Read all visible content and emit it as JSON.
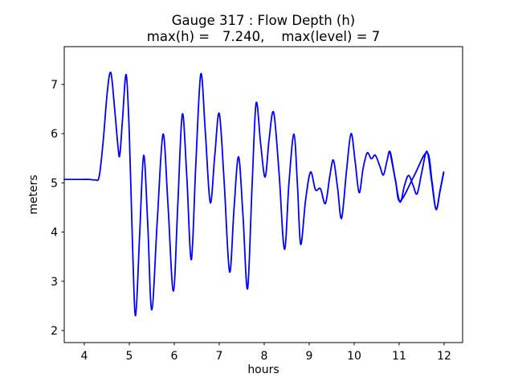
{
  "figure": {
    "background": "#ffffff",
    "title_line1": "Gauge 317 : Flow Depth (h)",
    "title_line2": "max(h) =   7.240,    max(level) = 7"
  },
  "chart_data": {
    "type": "line",
    "title": "Gauge 317 : Flow Depth (h)",
    "subtitle": "max(h) =   7.240,    max(level) = 7",
    "xlabel": "hours",
    "ylabel": "meters",
    "x_ticks": [
      4,
      5,
      6,
      7,
      8,
      9,
      10,
      11,
      12
    ],
    "y_ticks": [
      2,
      3,
      4,
      5,
      6,
      7
    ],
    "xlim": [
      3.55,
      12.41
    ],
    "ylim": [
      1.75,
      7.77
    ],
    "grid": false,
    "legend": "none",
    "line_color": "#0000ff",
    "axis_color": "#000000",
    "line_width": 1.8,
    "max_h_shown": "7.240",
    "max_level_shown": "7",
    "series": [
      {
        "name": "h",
        "points": [
          [
            3.55,
            5.07
          ],
          [
            3.75,
            5.07
          ],
          [
            3.95,
            5.07
          ],
          [
            4.12,
            5.07
          ],
          [
            4.24,
            5.06
          ],
          [
            4.33,
            5.13
          ],
          [
            4.42,
            5.85
          ],
          [
            4.51,
            6.85
          ],
          [
            4.59,
            7.24
          ],
          [
            4.67,
            6.55
          ],
          [
            4.75,
            5.72
          ],
          [
            4.79,
            5.57
          ],
          [
            4.85,
            6.3
          ],
          [
            4.93,
            7.2
          ],
          [
            5.0,
            6.0
          ],
          [
            5.07,
            3.8
          ],
          [
            5.14,
            2.3
          ],
          [
            5.23,
            3.95
          ],
          [
            5.32,
            5.56
          ],
          [
            5.41,
            4.15
          ],
          [
            5.5,
            2.42
          ],
          [
            5.62,
            4.2
          ],
          [
            5.75,
            5.99
          ],
          [
            5.86,
            4.55
          ],
          [
            5.98,
            2.8
          ],
          [
            6.08,
            4.6
          ],
          [
            6.18,
            6.4
          ],
          [
            6.28,
            5.1
          ],
          [
            6.38,
            3.44
          ],
          [
            6.48,
            5.4
          ],
          [
            6.59,
            7.21
          ],
          [
            6.69,
            6.05
          ],
          [
            6.8,
            4.6
          ],
          [
            6.9,
            5.55
          ],
          [
            7.0,
            6.41
          ],
          [
            7.11,
            5.0
          ],
          [
            7.23,
            3.19
          ],
          [
            7.33,
            4.5
          ],
          [
            7.43,
            5.53
          ],
          [
            7.53,
            4.3
          ],
          [
            7.63,
            2.85
          ],
          [
            7.73,
            4.95
          ],
          [
            7.82,
            6.62
          ],
          [
            7.92,
            5.8
          ],
          [
            8.02,
            5.12
          ],
          [
            8.11,
            5.9
          ],
          [
            8.21,
            6.43
          ],
          [
            8.33,
            5.2
          ],
          [
            8.45,
            3.65
          ],
          [
            8.55,
            5.0
          ],
          [
            8.66,
            5.99
          ],
          [
            8.74,
            4.95
          ],
          [
            8.81,
            3.75
          ],
          [
            8.92,
            4.65
          ],
          [
            9.03,
            5.22
          ],
          [
            9.14,
            4.86
          ],
          [
            9.25,
            4.88
          ],
          [
            9.36,
            4.58
          ],
          [
            9.46,
            5.15
          ],
          [
            9.54,
            5.46
          ],
          [
            9.63,
            4.9
          ],
          [
            9.72,
            4.28
          ],
          [
            9.83,
            5.25
          ],
          [
            9.93,
            6.0
          ],
          [
            10.02,
            5.45
          ],
          [
            10.11,
            4.8
          ],
          [
            10.2,
            5.3
          ],
          [
            10.29,
            5.61
          ],
          [
            10.38,
            5.49
          ],
          [
            10.47,
            5.56
          ],
          [
            10.57,
            5.34
          ],
          [
            10.65,
            5.16
          ],
          [
            10.73,
            5.45
          ],
          [
            10.8,
            5.63
          ],
          [
            10.91,
            5.08
          ],
          [
            11.02,
            4.61
          ],
          [
            11.12,
            4.95
          ],
          [
            11.21,
            5.15
          ],
          [
            11.31,
            4.95
          ],
          [
            11.4,
            4.78
          ],
          [
            11.51,
            5.25
          ],
          [
            11.62,
            5.64
          ],
          [
            11.72,
            5.05
          ],
          [
            11.82,
            4.46
          ],
          [
            11.91,
            4.85
          ],
          [
            11.99,
            5.22
          ]
        ]
      },
      {
        "name": "level",
        "points": [
          [
            10.8,
            5.61
          ],
          [
            10.92,
            5.05
          ],
          [
            11.02,
            4.63
          ],
          [
            11.32,
            5.12
          ],
          [
            11.62,
            5.62
          ],
          [
            11.73,
            5.03
          ],
          [
            11.82,
            4.46
          ],
          [
            11.91,
            4.84
          ],
          [
            11.99,
            5.2
          ]
        ]
      }
    ]
  }
}
